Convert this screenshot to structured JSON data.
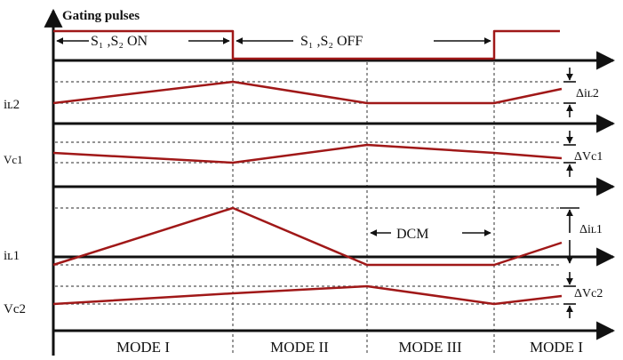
{
  "header": {
    "gating_label": "Gating pulses",
    "on_label": "S₁ ,S₂ ON",
    "off_label": "S₁ ,S₂ OFF"
  },
  "signals": {
    "il2": {
      "label": "iʟ2",
      "delta": "Δiʟ2"
    },
    "vc1": {
      "label": "Vc1",
      "delta": "ΔVc1"
    },
    "il1": {
      "label": "iʟ1",
      "delta": "Δiʟ1"
    },
    "vc2": {
      "label": "Vc2",
      "delta": "ΔVc2"
    }
  },
  "dcm_label": "DCM",
  "modes": [
    "MODE I",
    "MODE II",
    "MODE III",
    "MODE I"
  ],
  "colors": {
    "waveform": "#a01818",
    "axis": "#111111",
    "grid": "#555555"
  }
}
